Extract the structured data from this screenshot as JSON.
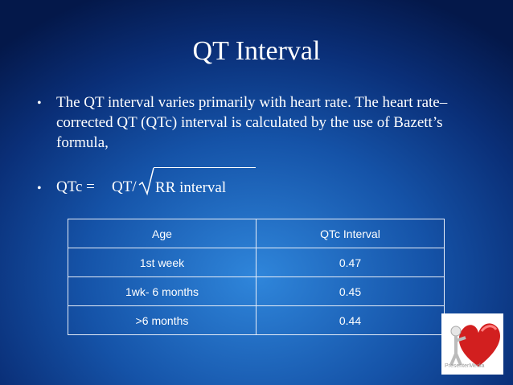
{
  "title": "QT Interval",
  "bullets": [
    "The QT interval varies primarily with heart rate. The heart rate–corrected QT (QTc) interval is calculated by the use of Bazett’s formula,"
  ],
  "formula": {
    "lhs": "QTc =",
    "numerator": "QT/",
    "radicand": "RR interval"
  },
  "table": {
    "header": [
      "Age",
      "QTc Interval"
    ],
    "rows": [
      [
        "1st week",
        "0.47"
      ],
      [
        "1wk- 6 months",
        "0.45"
      ],
      [
        ">6 months",
        "0.44"
      ]
    ]
  },
  "icon_caption": "PresenterMedia"
}
